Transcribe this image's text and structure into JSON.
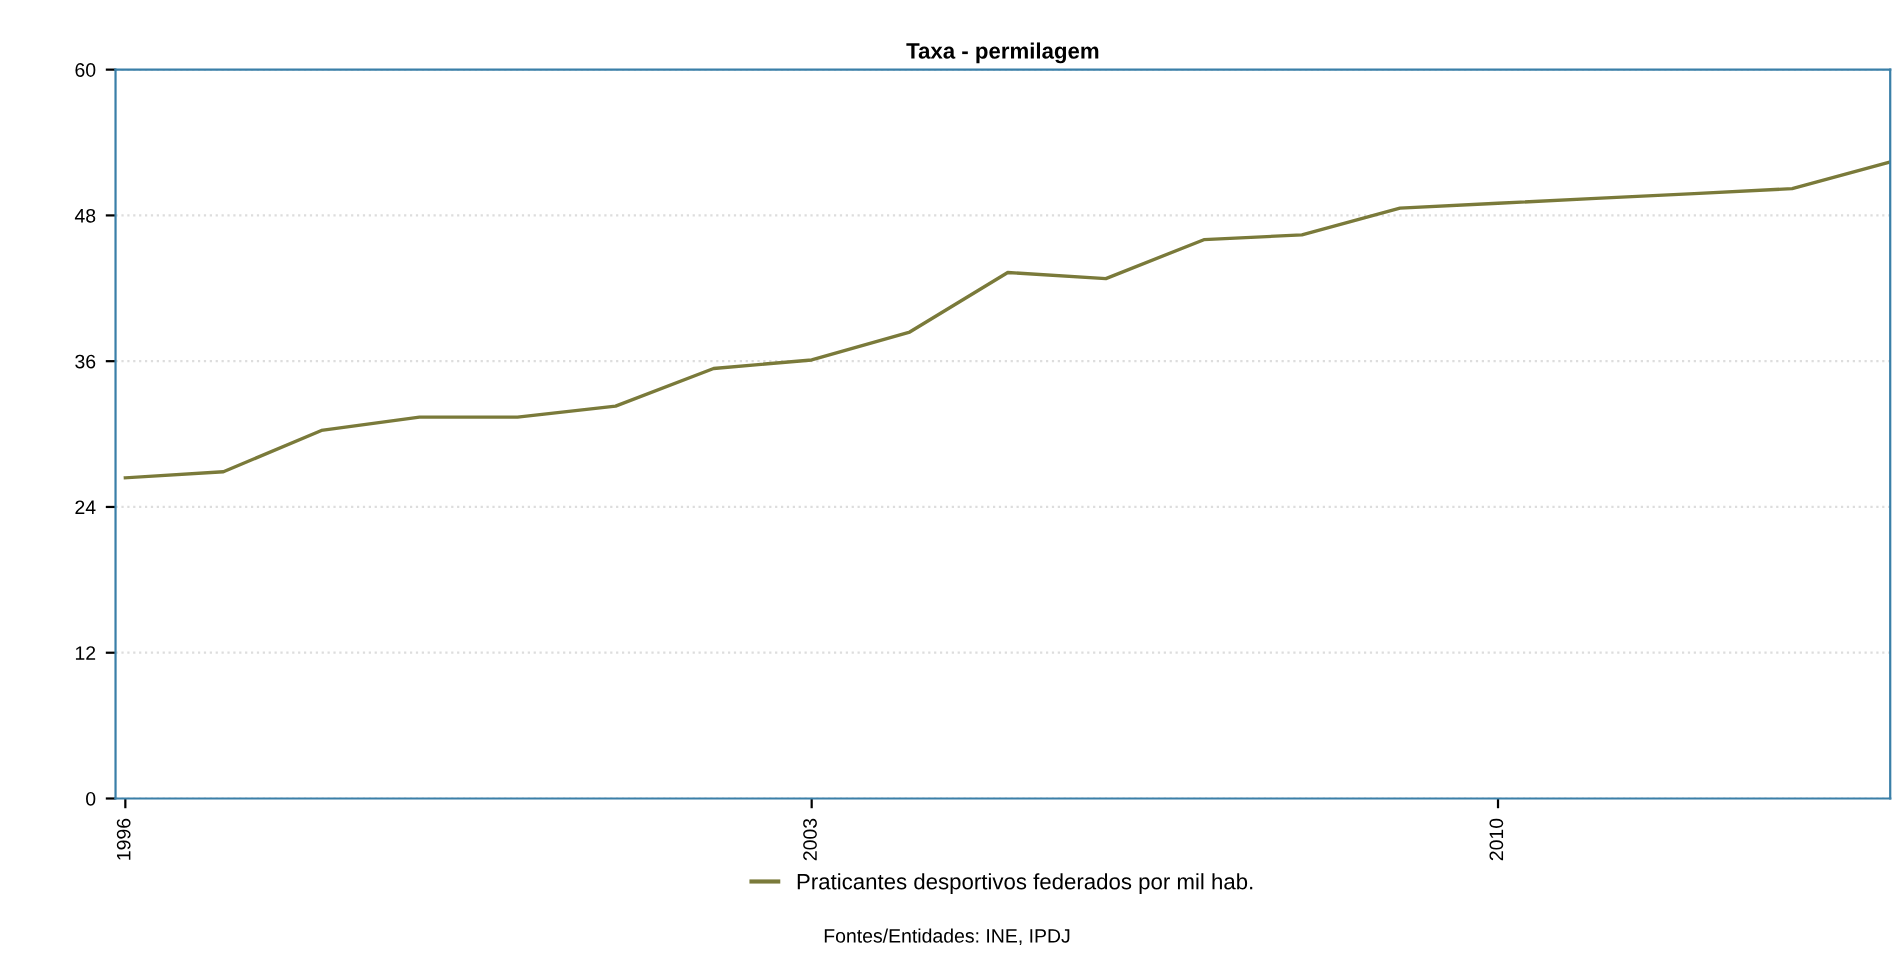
{
  "chart_data": {
    "type": "line",
    "title": "Taxa - permilagem",
    "x": [
      1996,
      1997,
      1998,
      1999,
      2000,
      2001,
      2002,
      2003,
      2004,
      2005,
      2006,
      2007,
      2008,
      2009,
      2010,
      2011,
      2012,
      2013,
      2014
    ],
    "series": [
      {
        "name": "Praticantes desportivos federados por mil hab.",
        "color": "#7a7a3a",
        "values": [
          26.4,
          26.9,
          30.3,
          31.4,
          31.4,
          32.3,
          35.4,
          36.1,
          38.4,
          43.3,
          42.8,
          46.0,
          46.4,
          48.6,
          49.0,
          49.4,
          49.8,
          50.2,
          52.4
        ]
      }
    ],
    "xlim": [
      1995.9,
      2014
    ],
    "xticks": [
      1996,
      2003,
      2010
    ],
    "ylim": [
      0,
      60
    ],
    "yticks": [
      0,
      12,
      24,
      36,
      48,
      60
    ],
    "grid": "y",
    "legend": "bottom",
    "marker": "none",
    "line_style": "solid",
    "annotations": [
      "Fontes/Entidades: INE, IPDJ"
    ]
  }
}
